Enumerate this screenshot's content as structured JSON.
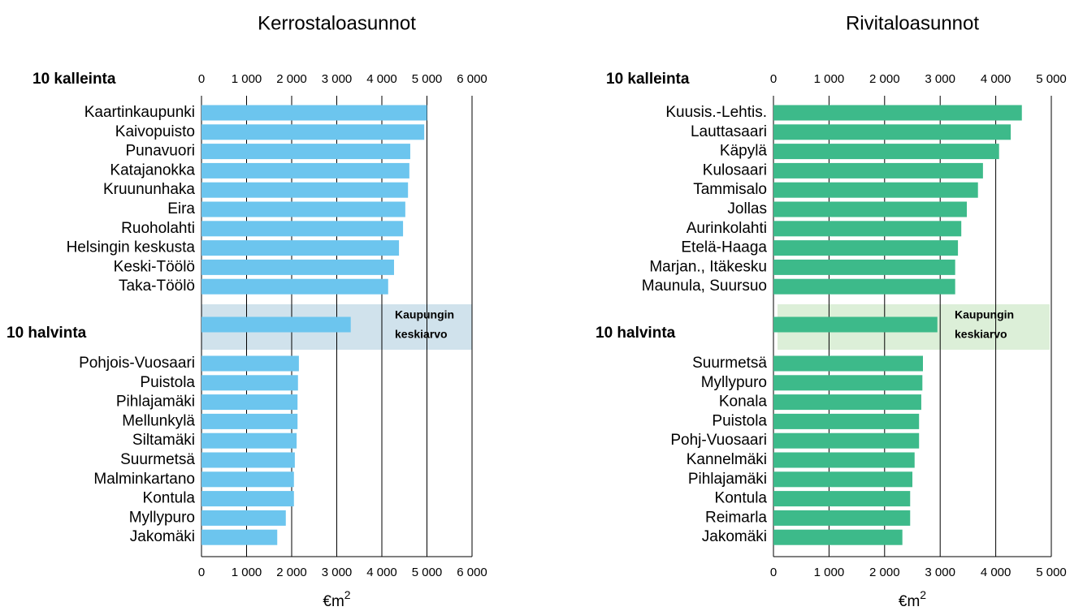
{
  "chart_data": [
    {
      "type": "bar",
      "orientation": "horizontal",
      "title": "Kerrostaloasunnot",
      "group_labels": [
        "10 kalleinta",
        "10 halvinta"
      ],
      "average_label": [
        "Kaupungin",
        "keskiarvo"
      ],
      "categories": [
        "Kaartinkaupunki",
        "Kaivopuisto",
        "Punavuori",
        "Katajanokka",
        "Kruununhaka",
        "Eira",
        "Ruoholahti",
        "Helsingin keskusta",
        "Keski-Töölö",
        "Taka-Töölö",
        null,
        "Pohjois-Vuosaari",
        "Puistola",
        "Pihlajamäki",
        "Mellunkylä",
        "Siltamäki",
        "Suurmetsä",
        "Malminkartano",
        "Kontula",
        "Myllypuro",
        "Jakomäki"
      ],
      "values": [
        5000,
        4940,
        4630,
        4610,
        4580,
        4520,
        4470,
        4380,
        4270,
        4140,
        3310,
        2160,
        2140,
        2130,
        2130,
        2110,
        2070,
        2050,
        2050,
        1870,
        1680
      ],
      "color": "#6cc5ee",
      "band_color": "#d0e2ec",
      "xlabel": "€m",
      "xlabel_sup": "2",
      "xlim": [
        0,
        6000
      ],
      "xticks": [
        0,
        {
          "value": 1000,
          "label": "1 000"
        },
        {
          "value": 2000,
          "label": "2 000"
        },
        {
          "value": 3000,
          "label": "3 000"
        },
        {
          "value": 4000,
          "label": "4 000"
        },
        {
          "value": 5000,
          "label": "5 000"
        },
        {
          "value": 6000,
          "label": "6 000"
        }
      ],
      "grid": true
    },
    {
      "type": "bar",
      "orientation": "horizontal",
      "title": "Rivitaloasunnot",
      "group_labels": [
        "10 kalleinta",
        "10 halvinta"
      ],
      "average_label": [
        "Kaupungin",
        "keskiarvo"
      ],
      "categories": [
        "Kuusis.-Lehtis.",
        "Lauttasaari",
        "Käpylä",
        "Kulosaari",
        "Tammisalo",
        "Jollas",
        "Aurinkolahti",
        "Etelä-Haaga",
        "Marjan., Itäkesku",
        "Maunula, Suursuo",
        null,
        "Suurmetsä",
        "Myllypuro",
        "Konala",
        "Puistola",
        "Pohj-Vuosaari",
        "Kannelmäki",
        "Pihlajamäki",
        "Kontula",
        "Reimarla",
        "Jakomäki"
      ],
      "values": [
        4470,
        4270,
        4060,
        3770,
        3680,
        3480,
        3380,
        3320,
        3270,
        3270,
        2950,
        2690,
        2680,
        2660,
        2620,
        2620,
        2540,
        2500,
        2460,
        2460,
        2320
      ],
      "color": "#3dba8a",
      "band_color": "#dcefd8",
      "xlabel": "€m",
      "xlabel_sup": "2",
      "xlim": [
        0,
        5000
      ],
      "xticks": [
        0,
        {
          "value": 1000,
          "label": "1 000"
        },
        {
          "value": 2000,
          "label": "2 000"
        },
        {
          "value": 3000,
          "label": "3 000"
        },
        {
          "value": 4000,
          "label": "4 000"
        },
        {
          "value": 5000,
          "label": "5 000"
        }
      ],
      "grid": true
    }
  ]
}
